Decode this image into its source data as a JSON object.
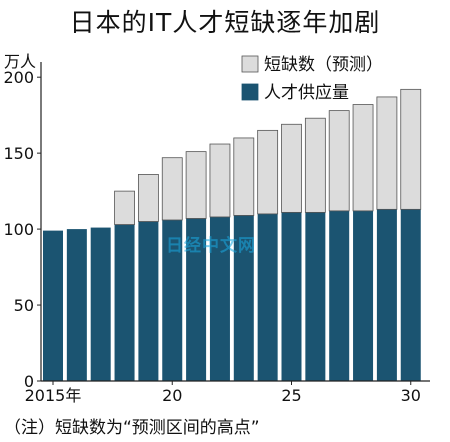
{
  "chart_data": {
    "type": "bar",
    "stacked": true,
    "title": "日本的IT人才短缺逐年加剧",
    "y_unit_label": "万人",
    "x": [
      2015,
      2016,
      2017,
      2018,
      2019,
      2020,
      2021,
      2022,
      2023,
      2024,
      2025,
      2026,
      2027,
      2028,
      2029,
      2030
    ],
    "x_tick_labels": [
      {
        "x": 2015,
        "label": "2015年"
      },
      {
        "x": 2020,
        "label": "20"
      },
      {
        "x": 2025,
        "label": "25"
      },
      {
        "x": 2030,
        "label": "30"
      }
    ],
    "y_ticks": [
      0,
      50,
      100,
      150,
      200
    ],
    "ylim": [
      0,
      210
    ],
    "grid": false,
    "legend_position": "top-right",
    "series": [
      {
        "name": "人才供应量",
        "color": "#1b5471",
        "values": [
          99,
          100,
          101,
          103,
          105,
          106,
          107,
          108,
          109,
          110,
          111,
          111,
          112,
          112,
          113,
          113
        ]
      },
      {
        "name": "短缺数（预测）",
        "color": "#dcdcdc",
        "values": [
          0,
          0,
          0,
          22,
          31,
          41,
          44,
          48,
          51,
          55,
          58,
          62,
          66,
          70,
          74,
          79
        ]
      }
    ],
    "note": "（注）短缺数为“预测区间的高点”"
  },
  "watermark": "日经中文网"
}
